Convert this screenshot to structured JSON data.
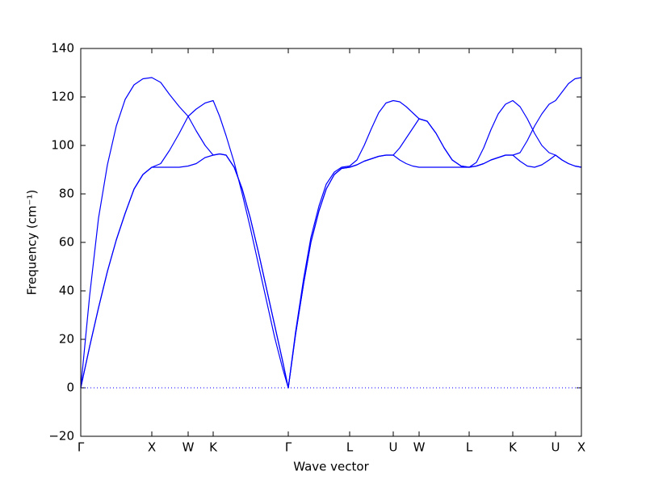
{
  "chart_data": {
    "type": "line",
    "xlabel": "Wave vector",
    "ylabel": "Frequency (cm⁻¹)",
    "xlim": [
      0,
      6.2
    ],
    "ylim": [
      -20,
      140
    ],
    "xticks": [
      {
        "value": 0,
        "label": "Γ"
      },
      {
        "value": 0.88,
        "label": "X"
      },
      {
        "value": 1.33,
        "label": "W"
      },
      {
        "value": 1.64,
        "label": "K"
      },
      {
        "value": 2.57,
        "label": "Γ"
      },
      {
        "value": 3.33,
        "label": "L"
      },
      {
        "value": 3.87,
        "label": "U"
      },
      {
        "value": 4.19,
        "label": "W"
      },
      {
        "value": 4.81,
        "label": "L"
      },
      {
        "value": 5.35,
        "label": "K"
      },
      {
        "value": 5.88,
        "label": "U"
      },
      {
        "value": 6.2,
        "label": "X"
      }
    ],
    "yticks": [
      {
        "value": -20,
        "label": "−20"
      },
      0,
      20,
      40,
      60,
      80,
      100,
      120,
      140
    ],
    "zero_line": true,
    "x": [
      0,
      0.11,
      0.22,
      0.33,
      0.44,
      0.55,
      0.66,
      0.77,
      0.88,
      0.99,
      1.1,
      1.22,
      1.33,
      1.43,
      1.54,
      1.64,
      1.72,
      1.8,
      1.9,
      2.0,
      2.1,
      2.2,
      2.3,
      2.4,
      2.5,
      2.57,
      2.66,
      2.76,
      2.85,
      2.95,
      3.04,
      3.14,
      3.23,
      3.33,
      3.42,
      3.51,
      3.6,
      3.69,
      3.78,
      3.87,
      3.95,
      4.03,
      4.11,
      4.19,
      4.29,
      4.4,
      4.5,
      4.6,
      4.71,
      4.81,
      4.9,
      4.99,
      5.08,
      5.17,
      5.26,
      5.35,
      5.44,
      5.53,
      5.62,
      5.71,
      5.8,
      5.88,
      5.96,
      6.04,
      6.12,
      6.2
    ],
    "series": [
      {
        "color": "#0000ff",
        "values": [
          0,
          38,
          70,
          92,
          108,
          119,
          125,
          127.5,
          128,
          126,
          121,
          116,
          112,
          106,
          100,
          96,
          96.5,
          96,
          91,
          82,
          70,
          56,
          41,
          26,
          11,
          0,
          23,
          45,
          62,
          75,
          84,
          89,
          91,
          91.5,
          94,
          100,
          107,
          113.5,
          117.5,
          118.5,
          118,
          116,
          113.5,
          111,
          110,
          105,
          99,
          94,
          91.5,
          91,
          93,
          99,
          106.5,
          113,
          117,
          118.5,
          116,
          111,
          105,
          100,
          97,
          96,
          94,
          92.5,
          91.5,
          91
        ]
      },
      {
        "color": "#0000ff",
        "values": [
          0,
          17,
          33,
          48,
          61,
          72,
          82,
          88,
          91,
          92.5,
          98,
          105,
          112,
          115,
          117.5,
          118.5,
          112,
          104,
          93,
          80,
          66,
          51,
          36,
          21,
          8,
          0,
          22,
          43,
          60,
          73,
          82,
          88,
          90.5,
          91,
          92,
          93.5,
          94.5,
          95.5,
          96,
          96,
          99,
          103,
          107,
          111,
          110,
          105,
          99,
          94,
          91.5,
          91,
          91.5,
          92.5,
          94,
          95,
          96,
          96,
          97,
          102,
          108,
          113,
          117,
          118.5,
          122,
          125.5,
          127.5,
          128
        ]
      },
      {
        "color": "#0000ff",
        "values": [
          0,
          17,
          33,
          48,
          61,
          72,
          82,
          88,
          91,
          91,
          91,
          91,
          91.5,
          92.5,
          95,
          96,
          96.5,
          96,
          91,
          82,
          70,
          56,
          41,
          26,
          11,
          0,
          22,
          43,
          60,
          73,
          82,
          88,
          90.5,
          91,
          92,
          93.5,
          94.5,
          95.5,
          96,
          96,
          94,
          92.5,
          91.5,
          91,
          91,
          91,
          91,
          91,
          91,
          91,
          91.5,
          92.5,
          94,
          95,
          96,
          96,
          93.5,
          91.5,
          91,
          92,
          94,
          96,
          94,
          92.5,
          91.5,
          91
        ]
      }
    ]
  }
}
